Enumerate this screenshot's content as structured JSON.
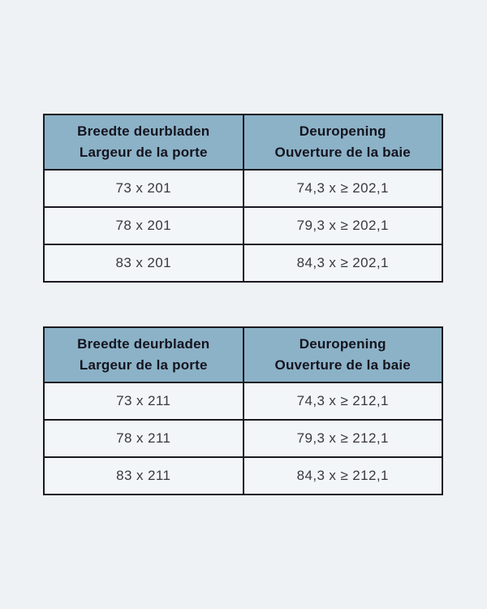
{
  "page": {
    "background_color": "#eef2f5"
  },
  "colors": {
    "header_background": "#8cb2c7",
    "border": "#191922",
    "cell_background": "#f3f6f8",
    "header_text": "#14141f",
    "cell_text": "#383842"
  },
  "tables": [
    {
      "name": "door-sizes-201",
      "headers": [
        {
          "line1": "Breedte deurbladen",
          "line2": "Largeur de la porte"
        },
        {
          "line1": "Deuropening",
          "line2": "Ouverture de la baie"
        }
      ],
      "rows": [
        [
          "73 x 201",
          "74,3 x ≥ 202,1"
        ],
        [
          "78 x 201",
          "79,3 x ≥ 202,1"
        ],
        [
          "83 x 201",
          "84,3 x ≥ 202,1"
        ]
      ]
    },
    {
      "name": "door-sizes-211",
      "headers": [
        {
          "line1": "Breedte deurbladen",
          "line2": "Largeur de la porte"
        },
        {
          "line1": "Deuropening",
          "line2": "Ouverture de la baie"
        }
      ],
      "rows": [
        [
          "73 x 211",
          "74,3 x ≥ 212,1"
        ],
        [
          "78 x 211",
          "79,3 x ≥ 212,1"
        ],
        [
          "83 x 211",
          "84,3 x ≥ 212,1"
        ]
      ]
    }
  ]
}
